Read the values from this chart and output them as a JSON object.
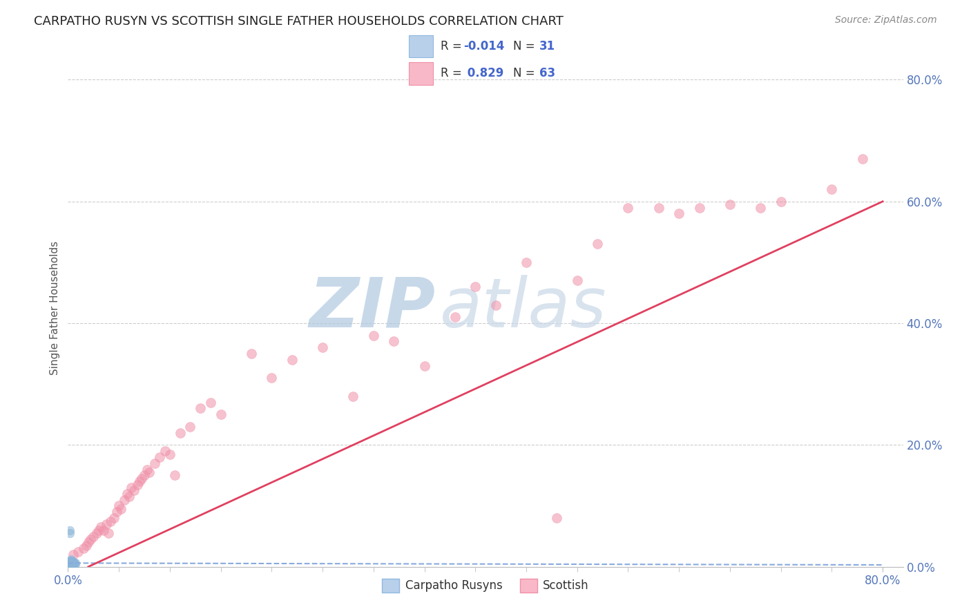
{
  "title": "CARPATHO RUSYN VS SCOTTISH SINGLE FATHER HOUSEHOLDS CORRELATION CHART",
  "source": "Source: ZipAtlas.com",
  "ylabel": "Single Father Households",
  "legend_entries": [
    {
      "label": "Carpatho Rusyns",
      "facecolor": "#b8d0ea",
      "edgecolor": "#90b8e0",
      "R": "-0.014",
      "N": "31"
    },
    {
      "label": "Scottish",
      "facecolor": "#f8b8c8",
      "edgecolor": "#f090a8",
      "R": "0.829",
      "N": "63"
    }
  ],
  "watermark_zip": "ZIP",
  "watermark_atlas": "atlas",
  "background_color": "#ffffff",
  "blue_scatter_x": [
    0.001,
    0.002,
    0.002,
    0.003,
    0.003,
    0.003,
    0.003,
    0.004,
    0.004,
    0.004,
    0.004,
    0.004,
    0.005,
    0.005,
    0.005,
    0.005,
    0.006,
    0.006,
    0.006,
    0.007,
    0.007,
    0.002,
    0.003,
    0.004,
    0.003,
    0.002,
    0.005,
    0.004,
    0.003,
    0.002,
    0.003
  ],
  "blue_scatter_y": [
    0.01,
    0.005,
    0.008,
    0.004,
    0.007,
    0.009,
    0.012,
    0.004,
    0.006,
    0.008,
    0.005,
    0.01,
    0.004,
    0.006,
    0.008,
    0.005,
    0.004,
    0.007,
    0.005,
    0.004,
    0.006,
    0.06,
    0.003,
    0.005,
    0.004,
    0.003,
    0.004,
    0.006,
    0.004,
    0.055,
    0.006
  ],
  "pink_scatter_x": [
    0.005,
    0.01,
    0.015,
    0.018,
    0.02,
    0.022,
    0.025,
    0.028,
    0.03,
    0.032,
    0.035,
    0.038,
    0.04,
    0.042,
    0.045,
    0.048,
    0.05,
    0.052,
    0.055,
    0.058,
    0.06,
    0.062,
    0.065,
    0.068,
    0.07,
    0.072,
    0.075,
    0.078,
    0.08,
    0.085,
    0.09,
    0.095,
    0.1,
    0.105,
    0.11,
    0.12,
    0.13,
    0.14,
    0.15,
    0.18,
    0.2,
    0.22,
    0.25,
    0.28,
    0.3,
    0.32,
    0.35,
    0.38,
    0.4,
    0.42,
    0.45,
    0.48,
    0.5,
    0.52,
    0.55,
    0.58,
    0.6,
    0.62,
    0.65,
    0.68,
    0.7,
    0.75,
    0.78
  ],
  "pink_scatter_y": [
    0.02,
    0.025,
    0.03,
    0.035,
    0.04,
    0.045,
    0.05,
    0.055,
    0.06,
    0.065,
    0.06,
    0.07,
    0.055,
    0.075,
    0.08,
    0.09,
    0.1,
    0.095,
    0.11,
    0.12,
    0.115,
    0.13,
    0.125,
    0.135,
    0.14,
    0.145,
    0.15,
    0.16,
    0.155,
    0.17,
    0.18,
    0.19,
    0.185,
    0.15,
    0.22,
    0.23,
    0.26,
    0.27,
    0.25,
    0.35,
    0.31,
    0.34,
    0.36,
    0.28,
    0.38,
    0.37,
    0.33,
    0.41,
    0.46,
    0.43,
    0.5,
    0.08,
    0.47,
    0.53,
    0.59,
    0.59,
    0.58,
    0.59,
    0.595,
    0.59,
    0.6,
    0.62,
    0.67
  ],
  "blue_line_x": [
    0.0,
    0.8
  ],
  "blue_line_y": [
    0.006,
    0.003
  ],
  "pink_line_x": [
    0.02,
    0.8
  ],
  "pink_line_y": [
    0.0,
    0.6
  ],
  "xlim": [
    0.0,
    0.82
  ],
  "ylim": [
    0.0,
    0.85
  ],
  "scatter_size_blue": 80,
  "scatter_size_pink": 100,
  "scatter_alpha": 0.55,
  "grid_color": "#cccccc",
  "blue_scatter_color": "#8ab4d8",
  "blue_line_color": "#88aadd",
  "pink_scatter_color": "#f090a8",
  "pink_line_color": "#e04060",
  "tick_color": "#5577bb",
  "title_fontsize": 13,
  "watermark_color_zip": "#b0c8e0",
  "watermark_color_atlas": "#c8d8e8",
  "watermark_fontsize": 72
}
